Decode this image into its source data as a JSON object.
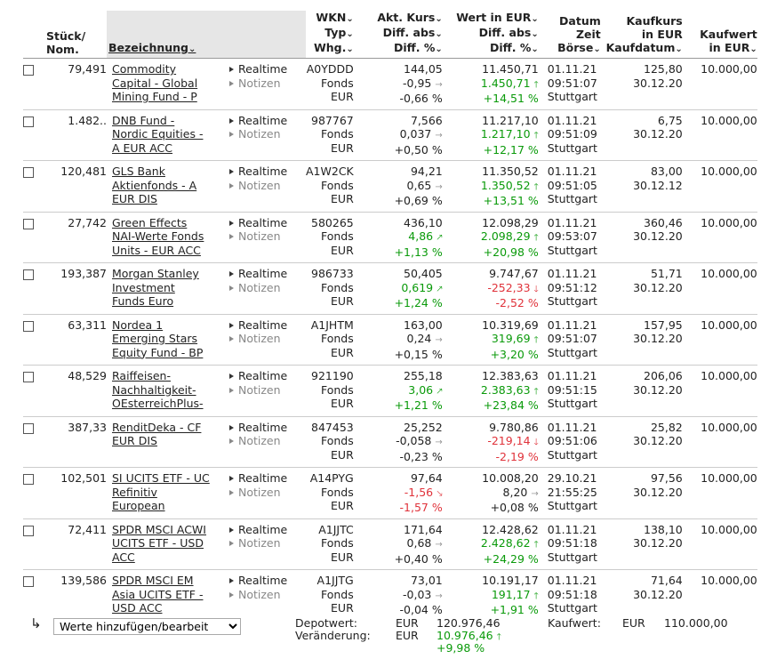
{
  "header": {
    "stueck": [
      "Stück/",
      "Nom."
    ],
    "bezeichnung": "Bezeichnung",
    "wkn": [
      "WKN",
      "Typ",
      "Whg."
    ],
    "kurs": [
      "Akt. Kurs",
      "Diff. abs",
      "Diff. %"
    ],
    "wert": [
      "Wert in EUR",
      "Diff. abs",
      "Diff. %"
    ],
    "datum": [
      "Datum",
      "Zeit",
      "Börse"
    ],
    "kaufkurs": [
      "Kaufkurs",
      "in EUR",
      "Kaufdatum"
    ],
    "kaufwert": [
      "Kaufwert",
      "in EUR"
    ]
  },
  "link_labels": {
    "realtime": "Realtime",
    "notizen": "Notizen"
  },
  "rows": [
    {
      "qty": "79,491",
      "name": [
        "Commodity",
        "Capital - Global",
        "Mining Fund - P"
      ],
      "wkn": "A0YDDD",
      "type": "Fonds",
      "cur": "EUR",
      "price": "144,05",
      "diff_abs": "-0,95",
      "diff_abs_dir": "flat",
      "diff_pct": "-0,66 %",
      "diff_pct_dir": "flat",
      "value": "11.450,71",
      "val_abs": "1.450,71",
      "val_abs_dir": "up",
      "val_pct": "+14,51 %",
      "val_pct_dir": "up",
      "date": "01.11.21",
      "time": "09:51:07",
      "boerse": "Stuttgart",
      "kaufkurs": "125,80",
      "kaufdatum": "30.12.20",
      "kaufwert": "10.000,00"
    },
    {
      "qty": "1.482..",
      "name": [
        "DNB Fund -",
        "Nordic Equities -",
        "A EUR ACC"
      ],
      "wkn": "987767",
      "type": "Fonds",
      "cur": "EUR",
      "price": "7,566",
      "diff_abs": "0,037",
      "diff_abs_dir": "flat",
      "diff_pct": "+0,50 %",
      "diff_pct_dir": "flat",
      "value": "11.217,10",
      "val_abs": "1.217,10",
      "val_abs_dir": "up",
      "val_pct": "+12,17 %",
      "val_pct_dir": "up",
      "date": "01.11.21",
      "time": "09:51:09",
      "boerse": "Stuttgart",
      "kaufkurs": "6,75",
      "kaufdatum": "30.12.20",
      "kaufwert": "10.000,00"
    },
    {
      "qty": "120,481",
      "name": [
        "GLS Bank",
        "Aktienfonds - A",
        "EUR DIS"
      ],
      "wkn": "A1W2CK",
      "type": "Fonds",
      "cur": "EUR",
      "price": "94,21",
      "diff_abs": "0,65",
      "diff_abs_dir": "flat",
      "diff_pct": "+0,69 %",
      "diff_pct_dir": "flat",
      "value": "11.350,52",
      "val_abs": "1.350,52",
      "val_abs_dir": "up",
      "val_pct": "+13,51 %",
      "val_pct_dir": "up",
      "date": "01.11.21",
      "time": "09:51:05",
      "boerse": "Stuttgart",
      "kaufkurs": "83,00",
      "kaufdatum": "30.12.12",
      "kaufwert": "10.000,00"
    },
    {
      "qty": "27,742",
      "name": [
        "Green Effects",
        "NAI-Werte Fonds",
        "Units - EUR ACC"
      ],
      "wkn": "580265",
      "type": "Fonds",
      "cur": "EUR",
      "price": "436,10",
      "diff_abs": "4,86",
      "diff_abs_dir": "up",
      "diff_pct": "+1,13 %",
      "diff_pct_dir": "up",
      "value": "12.098,29",
      "val_abs": "2.098,29",
      "val_abs_dir": "up",
      "val_pct": "+20,98 %",
      "val_pct_dir": "up",
      "date": "01.11.21",
      "time": "09:53:07",
      "boerse": "Stuttgart",
      "kaufkurs": "360,46",
      "kaufdatum": "30.12.20",
      "kaufwert": "10.000,00"
    },
    {
      "qty": "193,387",
      "name": [
        "Morgan Stanley",
        "Investment",
        "Funds Euro"
      ],
      "wkn": "986733",
      "type": "Fonds",
      "cur": "EUR",
      "price": "50,405",
      "diff_abs": "0,619",
      "diff_abs_dir": "up",
      "diff_pct": "+1,24 %",
      "diff_pct_dir": "up",
      "value": "9.747,67",
      "val_abs": "-252,33",
      "val_abs_dir": "down",
      "val_pct": "-2,52 %",
      "val_pct_dir": "down",
      "date": "01.11.21",
      "time": "09:51:12",
      "boerse": "Stuttgart",
      "kaufkurs": "51,71",
      "kaufdatum": "30.12.20",
      "kaufwert": "10.000,00"
    },
    {
      "qty": "63,311",
      "name": [
        "Nordea 1",
        "Emerging Stars",
        "Equity Fund - BP"
      ],
      "wkn": "A1JHTM",
      "type": "Fonds",
      "cur": "EUR",
      "price": "163,00",
      "diff_abs": "0,24",
      "diff_abs_dir": "flat",
      "diff_pct": "+0,15 %",
      "diff_pct_dir": "flat",
      "value": "10.319,69",
      "val_abs": "319,69",
      "val_abs_dir": "up",
      "val_pct": "+3,20 %",
      "val_pct_dir": "up",
      "date": "01.11.21",
      "time": "09:51:07",
      "boerse": "Stuttgart",
      "kaufkurs": "157,95",
      "kaufdatum": "30.12.20",
      "kaufwert": "10.000,00"
    },
    {
      "qty": "48,529",
      "name": [
        "Raiffeisen-",
        "Nachhaltigkeit-",
        "OEsterreichPlus-"
      ],
      "wkn": "921190",
      "type": "Fonds",
      "cur": "EUR",
      "price": "255,18",
      "diff_abs": "3,06",
      "diff_abs_dir": "up",
      "diff_pct": "+1,21 %",
      "diff_pct_dir": "up",
      "value": "12.383,63",
      "val_abs": "2.383,63",
      "val_abs_dir": "up",
      "val_pct": "+23,84 %",
      "val_pct_dir": "up",
      "date": "01.11.21",
      "time": "09:51:15",
      "boerse": "Stuttgart",
      "kaufkurs": "206,06",
      "kaufdatum": "30.12.20",
      "kaufwert": "10.000,00"
    },
    {
      "qty": "387,33",
      "name": [
        "RenditDeka - CF",
        "EUR DIS",
        ""
      ],
      "wkn": "847453",
      "type": "Fonds",
      "cur": "EUR",
      "price": "25,252",
      "diff_abs": "-0,058",
      "diff_abs_dir": "flat",
      "diff_pct": "-0,23 %",
      "diff_pct_dir": "flat",
      "value": "9.780,86",
      "val_abs": "-219,14",
      "val_abs_dir": "down",
      "val_pct": "-2,19 %",
      "val_pct_dir": "down",
      "date": "01.11.21",
      "time": "09:51:06",
      "boerse": "Stuttgart",
      "kaufkurs": "25,82",
      "kaufdatum": "30.12.20",
      "kaufwert": "10.000,00"
    },
    {
      "qty": "102,501",
      "name": [
        "SI UCITS ETF - UC",
        "Refinitiv",
        "European"
      ],
      "wkn": "A14PYG",
      "type": "Fonds",
      "cur": "EUR",
      "price": "97,64",
      "diff_abs": "-1,56",
      "diff_abs_dir": "down",
      "diff_pct": "-1,57 %",
      "diff_pct_dir": "down",
      "value": "10.008,20",
      "val_abs": "8,20",
      "val_abs_dir": "flat",
      "val_pct": "+0,08 %",
      "val_pct_dir": "flat",
      "date": "29.10.21",
      "time": "21:55:25",
      "boerse": "Stuttgart",
      "kaufkurs": "97,56",
      "kaufdatum": "30.12.20",
      "kaufwert": "10.000,00"
    },
    {
      "qty": "72,411",
      "name": [
        "SPDR MSCI ACWI",
        "UCITS ETF - USD",
        "ACC"
      ],
      "wkn": "A1JJTC",
      "type": "Fonds",
      "cur": "EUR",
      "price": "171,64",
      "diff_abs": "0,68",
      "diff_abs_dir": "flat",
      "diff_pct": "+0,40 %",
      "diff_pct_dir": "flat",
      "value": "12.428,62",
      "val_abs": "2.428,62",
      "val_abs_dir": "up",
      "val_pct": "+24,29 %",
      "val_pct_dir": "up",
      "date": "01.11.21",
      "time": "09:51:18",
      "boerse": "Stuttgart",
      "kaufkurs": "138,10",
      "kaufdatum": "30.12.20",
      "kaufwert": "10.000,00"
    },
    {
      "qty": "139,586",
      "name": [
        "SPDR MSCI EM",
        "Asia UCITS ETF -",
        "USD ACC"
      ],
      "wkn": "A1JJTG",
      "type": "Fonds",
      "cur": "EUR",
      "price": "73,01",
      "diff_abs": "-0,03",
      "diff_abs_dir": "flat",
      "diff_pct": "-0,04 %",
      "diff_pct_dir": "flat",
      "value": "10.191,17",
      "val_abs": "191,17",
      "val_abs_dir": "up",
      "val_pct": "+1,91 %",
      "val_pct_dir": "up",
      "date": "01.11.21",
      "time": "09:51:18",
      "boerse": "Stuttgart",
      "kaufkurs": "71,64",
      "kaufdatum": "30.12.20",
      "kaufwert": "10.000,00"
    }
  ],
  "footer": {
    "select_value": "Werte hinzufügen/bearbeit",
    "depotwert_label": "Depotwert:",
    "veraenderung_label": "Veränderung:",
    "cur1": "EUR",
    "cur2": "EUR",
    "depotwert": "120.976,46",
    "veraenderung": "10.976,46",
    "veraenderung_pct": "+9,98 %",
    "kaufwert_label": "Kaufwert:",
    "kaufwert_cur": "EUR",
    "kaufwert": "110.000,00"
  },
  "colors": {
    "positive": "#0a9a0a",
    "negative": "#e0323a",
    "neutral_arrow": "#999999"
  }
}
